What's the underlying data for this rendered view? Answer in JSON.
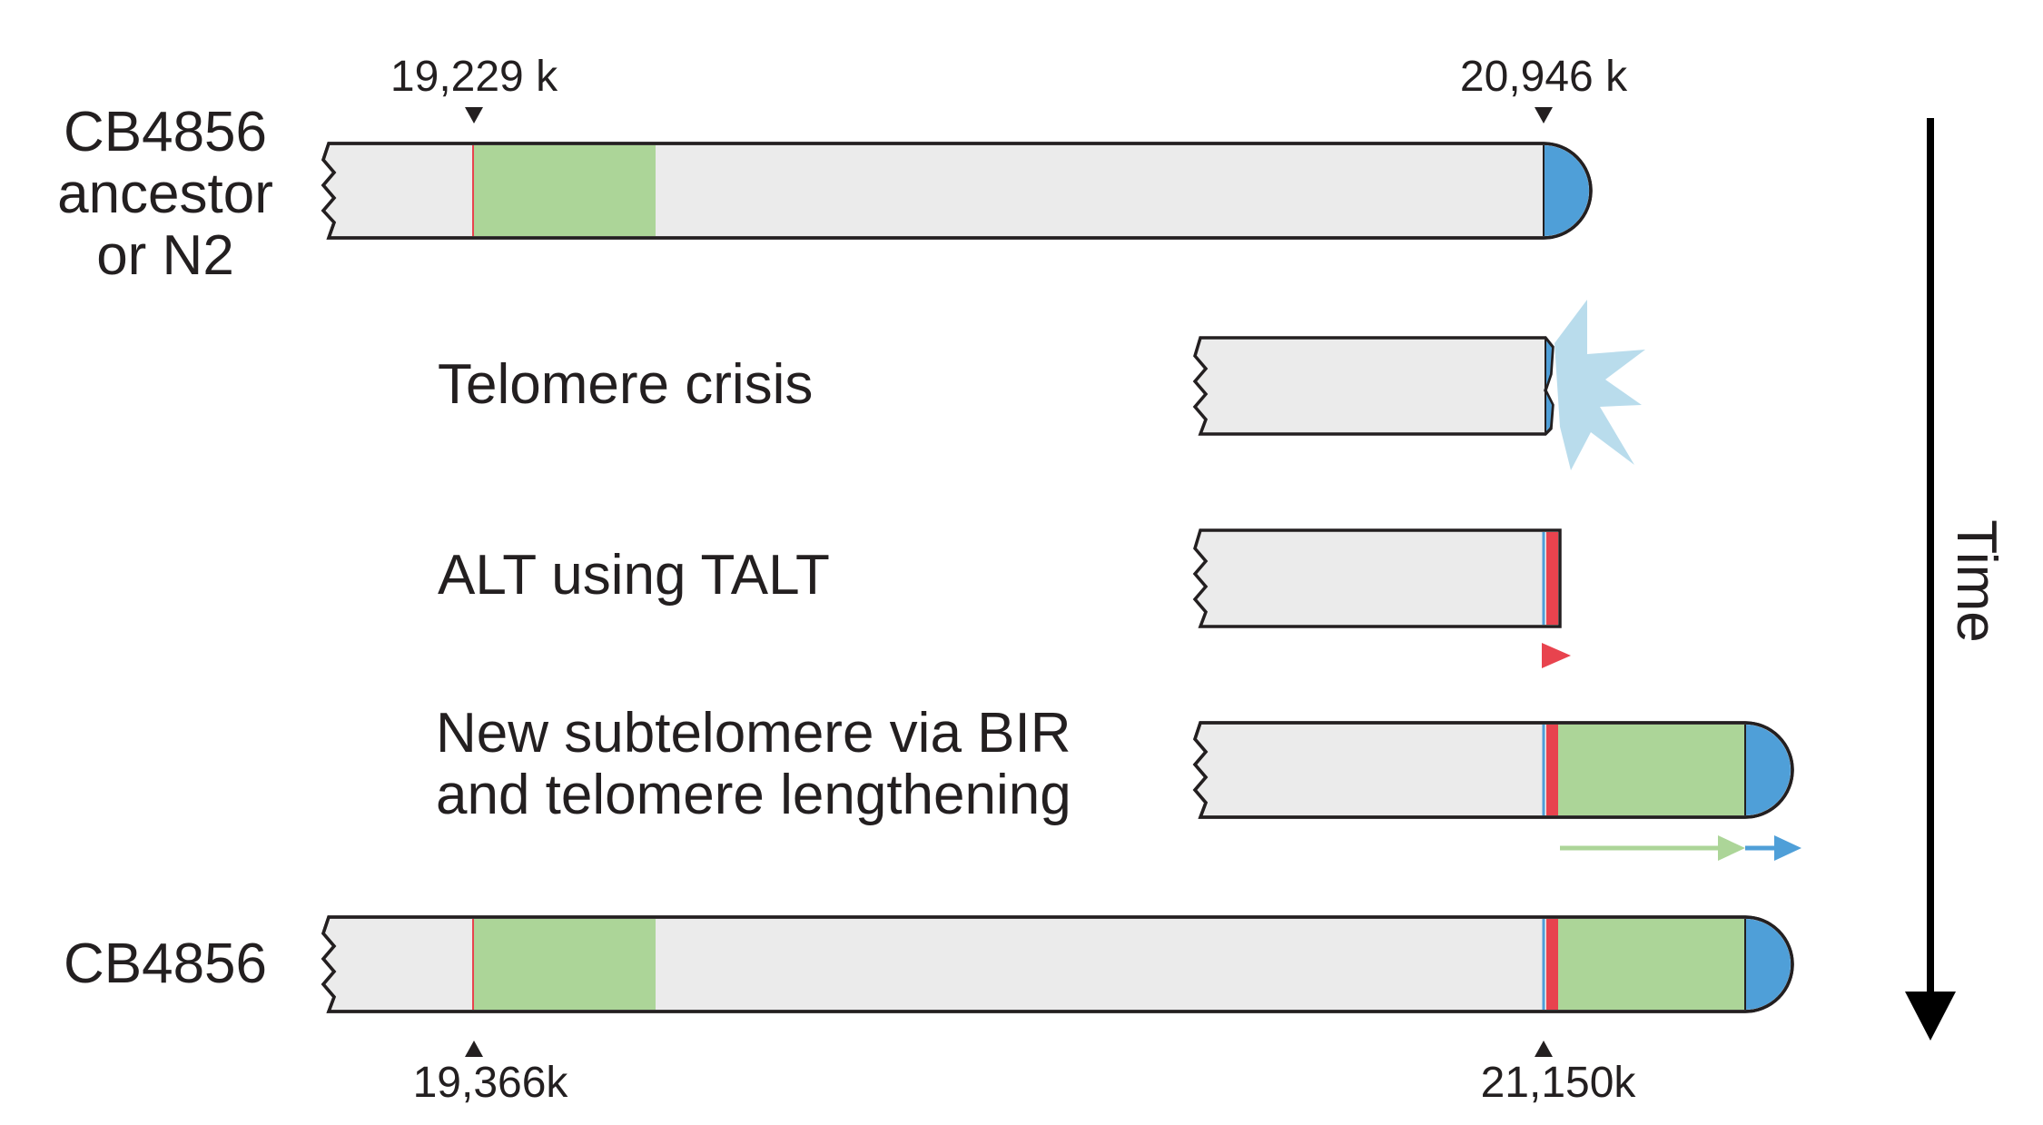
{
  "labels": {
    "ancestor_line1": "CB4856",
    "ancestor_line2": "ancestor",
    "ancestor_line3": "or N2",
    "crisis": "Telomere crisis",
    "alt": "ALT using TALT",
    "bir_line1": "New subtelomere via BIR",
    "bir_line2": "and telomere lengthening",
    "final": "CB4856",
    "time": "Time"
  },
  "coordinates": {
    "top_left": "19,229 k",
    "top_right": "20,946 k",
    "bottom_left": "19,366k",
    "bottom_right": "21,150k"
  },
  "colors": {
    "chromosome_fill": "#ebebeb",
    "outline": "#231f20",
    "subtelomere_green": "#acd598",
    "telomere_blue": "#4f9fd8",
    "talt_red": "#e8434e",
    "crisis_burst": "#b9dcec",
    "arrow_green": "#acd598",
    "arrow_blue": "#4f9fd8",
    "arrow_red": "#e8434e"
  }
}
